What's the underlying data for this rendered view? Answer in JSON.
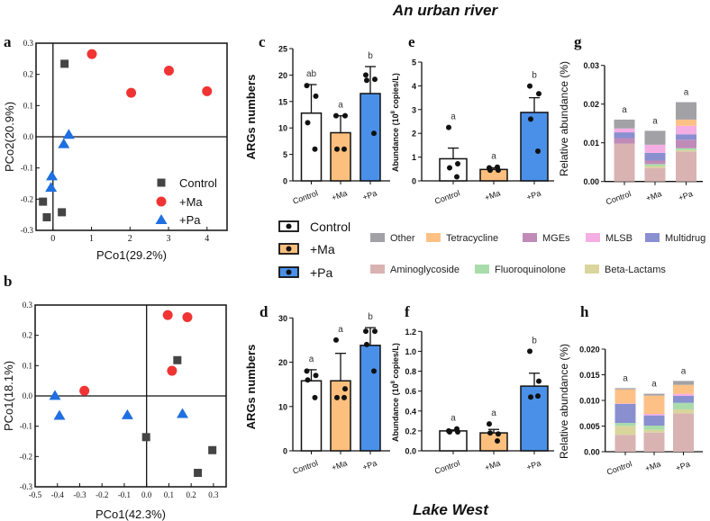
{
  "titles": {
    "top": "An urban river",
    "bottom": "Lake West"
  },
  "colors": {
    "control_marker": "#444444",
    "ma_marker": "#f03434",
    "pa_marker": "#1f6fe0",
    "control_bar": "#ffffff",
    "ma_bar": "#fdbf7e",
    "pa_bar": "#4a90e8",
    "Other": "#a2a2a6",
    "Tetracycline": "#fdc186",
    "MGEs": "#c08bb8",
    "MLSB": "#f4aee4",
    "Multidrug": "#8a8fd0",
    "Aminoglycoside": "#d9b3b2",
    "Fluoroquinolone": "#a9dcaa",
    "Beta-Lactams": "#d9d59c"
  },
  "group_legend": [
    "Control",
    "+Ma",
    "+Pa"
  ],
  "category_legend": [
    "Other",
    "Tetracycline",
    "MGEs",
    "MLSB",
    "Multidrug",
    "Aminoglycoside",
    "Fluoroquinolone",
    "Beta-Lactams"
  ],
  "chart_data": [
    {
      "panel": "a",
      "type": "scatter",
      "xlabel": "PCo1(29.2%)",
      "ylabel": "PCo2(20.9%)",
      "xlim": [
        -0.44,
        4.52
      ],
      "ylim": [
        -0.3,
        0.3
      ],
      "xticks": [
        "0",
        "1",
        "2",
        "3",
        "4"
      ],
      "xtick_values": [
        0,
        1,
        2,
        3,
        4
      ],
      "yticks": [
        "-0.3",
        "-0.2",
        "-0.1",
        "0.0",
        "0.1",
        "0.2",
        "0.3"
      ],
      "ytick_values": [
        -0.3,
        -0.2,
        -0.1,
        0,
        0.1,
        0.2,
        0.3
      ],
      "legend": "bottom-right",
      "series": [
        {
          "name": "Control",
          "points": [
            [
              0.3,
              0.234
            ],
            [
              -0.26,
              -0.208
            ],
            [
              -0.16,
              -0.258
            ],
            [
              0.23,
              -0.242
            ]
          ]
        },
        {
          "name": "+Ma",
          "points": [
            [
              1.01,
              0.265
            ],
            [
              2.03,
              0.141
            ],
            [
              3.01,
              0.212
            ],
            [
              4.0,
              0.146
            ]
          ]
        },
        {
          "name": "+Pa",
          "points": [
            [
              0.41,
              0.008
            ],
            [
              0.28,
              -0.022
            ],
            [
              -0.03,
              -0.125
            ],
            [
              -0.05,
              -0.162
            ]
          ]
        }
      ]
    },
    {
      "panel": "b",
      "type": "scatter",
      "xlabel": "PCo1(42.3%)",
      "ylabel": "PCo1(18.1%)",
      "xlim": [
        -0.5,
        0.357
      ],
      "ylim": [
        -0.3,
        0.3
      ],
      "xticks": [
        "-0.5",
        "-0.4",
        "-0.3",
        "-0.2",
        "-0.1",
        "0.0",
        "0.1",
        "0.2",
        "0.3"
      ],
      "xtick_values": [
        -0.5,
        -0.4,
        -0.3,
        -0.2,
        -0.1,
        0,
        0.1,
        0.2,
        0.3
      ],
      "yticks": [
        "-0.3",
        "-0.2",
        "-0.1",
        "0.0",
        "0.1",
        "0.2",
        "0.3"
      ],
      "ytick_values": [
        -0.3,
        -0.2,
        -0.1,
        0,
        0.1,
        0.2,
        0.3
      ],
      "series": [
        {
          "name": "Control",
          "points": [
            [
              0.138,
              0.118
            ],
            [
              -0.002,
              -0.136
            ],
            [
              0.295,
              -0.179
            ],
            [
              0.23,
              -0.254
            ]
          ]
        },
        {
          "name": "+Ma",
          "points": [
            [
              0.095,
              0.267
            ],
            [
              0.183,
              0.26
            ],
            [
              0.114,
              0.083
            ],
            [
              -0.279,
              0.017
            ]
          ]
        },
        {
          "name": "+Pa",
          "points": [
            [
              -0.411,
              0.002
            ],
            [
              -0.391,
              -0.064
            ],
            [
              -0.086,
              -0.062
            ],
            [
              0.161,
              -0.058
            ]
          ]
        }
      ]
    },
    {
      "panel": "c",
      "type": "bar",
      "ylabel": "ARGs numbers",
      "ylim": [
        0,
        25
      ],
      "yticks": [
        "0",
        "5",
        "10",
        "15",
        "20",
        "25"
      ],
      "ytick_values": [
        0,
        5,
        10,
        15,
        20,
        25
      ],
      "categories": [
        "Control",
        "+Ma",
        "+Pa"
      ],
      "values": [
        12.8,
        9.1,
        16.5
      ],
      "error_upper": [
        18.2,
        12.3,
        21.6
      ],
      "points": [
        [
          18,
          16,
          11,
          6
        ],
        [
          12.3,
          12.3,
          6,
          6
        ],
        [
          20,
          19.2,
          19,
          9
        ]
      ],
      "letters": [
        "ab",
        "a",
        "b"
      ]
    },
    {
      "panel": "e",
      "type": "bar",
      "ylabel_main": "Abundance (10",
      "ylabel_sup": "8",
      "ylabel_end": " copies/L)",
      "ylim": [
        0,
        5
      ],
      "yticks": [
        "0",
        "1",
        "2",
        "3",
        "4",
        "5"
      ],
      "ytick_values": [
        0,
        1,
        2,
        3,
        4,
        5
      ],
      "categories": [
        "Control",
        "+Ma",
        "+Pa"
      ],
      "values": [
        0.93,
        0.48,
        2.88
      ],
      "error_upper": [
        1.38,
        0.55,
        3.5
      ],
      "points": [
        [
          2.25,
          0.72,
          0.55,
          0.17
        ],
        [
          0.55,
          0.45,
          0.45,
          0.58
        ],
        [
          3.99,
          3.67,
          2.6,
          1.25
        ]
      ],
      "letters": [
        "a",
        "a",
        "b"
      ]
    },
    {
      "panel": "g",
      "type": "stacked-bar",
      "ylabel": "Relative abundance (%)",
      "ylim": [
        0,
        0.03
      ],
      "yticks": [
        "0.00",
        "0.01",
        "0.02",
        "0.03"
      ],
      "ytick_values": [
        0,
        0.01,
        0.02,
        0.03
      ],
      "categories": [
        "Control",
        "+Ma",
        "+Pa"
      ],
      "stack_order": [
        "Aminoglycoside",
        "Beta-Lactams",
        "Fluoroquinolone",
        "MGEs",
        "Multidrug",
        "MLSB",
        "Tetracycline",
        "Other"
      ],
      "series": [
        {
          "name": "Aminoglycoside",
          "values": [
            0.0098,
            0.0035,
            0.00775
          ]
        },
        {
          "name": "Beta-Lactams",
          "values": [
            0,
            0.0005,
            0.00035
          ]
        },
        {
          "name": "Fluoroquinolone",
          "values": [
            0,
            0.0005,
            0.0005
          ]
        },
        {
          "name": "MGEs",
          "values": [
            0.0014,
            0.0009,
            0.0022
          ]
        },
        {
          "name": "Multidrug",
          "values": [
            0.0015,
            0.002,
            0.0014
          ]
        },
        {
          "name": "MLSB",
          "values": [
            0.001,
            0.0021,
            0.0022
          ]
        },
        {
          "name": "Tetracycline",
          "values": [
            0,
            0,
            0.0016
          ]
        },
        {
          "name": "Other",
          "values": [
            0.0023,
            0.0036,
            0.0045
          ]
        }
      ],
      "letters": [
        "a",
        "a",
        "a"
      ]
    },
    {
      "panel": "d",
      "type": "bar",
      "ylabel": "ARGs numbers",
      "ylim": [
        0,
        30
      ],
      "yticks": [
        "0",
        "10",
        "20",
        "30"
      ],
      "ytick_values": [
        0,
        10,
        20,
        30
      ],
      "categories": [
        "Control",
        "+Ma",
        "+Pa"
      ],
      "values": [
        15.8,
        15.8,
        23.8
      ],
      "error_upper": [
        18.3,
        22,
        27.8
      ],
      "points": [
        [
          18,
          17,
          16,
          12
        ],
        [
          25,
          14,
          12,
          12
        ],
        [
          27,
          27,
          24,
          18
        ]
      ],
      "letters": [
        "a",
        "a",
        "b"
      ]
    },
    {
      "panel": "f",
      "type": "bar",
      "ylabel_main": "Abundance (10",
      "ylabel_sup": "8",
      "ylabel_end": " copies/L)",
      "ylim": [
        0,
        1.2
      ],
      "yticks": [
        "0.0",
        "0.2",
        "0.4",
        "0.6",
        "0.8",
        "1.0",
        "1.2"
      ],
      "ytick_values": [
        0,
        0.2,
        0.4,
        0.6,
        0.8,
        1.0,
        1.2
      ],
      "categories": [
        "Control",
        "+Ma",
        "+Pa"
      ],
      "values": [
        0.2,
        0.18,
        0.65
      ],
      "error_upper": [
        0.21,
        0.215,
        0.78
      ],
      "points": [
        [
          0.2,
          0.19,
          0.19,
          0.22
        ],
        [
          0.27,
          0.17,
          0.18,
          0.1
        ],
        [
          1.0,
          0.7,
          0.54,
          0.55
        ]
      ],
      "letters": [
        "a",
        "a",
        "b"
      ]
    },
    {
      "panel": "h",
      "type": "stacked-bar",
      "ylabel": "Relative abundance (%)",
      "ylim": [
        0,
        0.02
      ],
      "yticks": [
        "0.00",
        "0.005",
        "0.010",
        "0.015",
        "0.020"
      ],
      "ytick_values": [
        0,
        0.005,
        0.01,
        0.015,
        0.02
      ],
      "categories": [
        "Control",
        "+Ma",
        "+Pa"
      ],
      "stack_order": [
        "Aminoglycoside",
        "Beta-Lactams",
        "Fluoroquinolone",
        "MGEs",
        "Multidrug",
        "MLSB",
        "Tetracycline",
        "Other"
      ],
      "series": [
        {
          "name": "Aminoglycoside",
          "values": [
            0.00327,
            0.00374,
            0.00749
          ]
        },
        {
          "name": "Beta-Lactams",
          "values": [
            0.00176,
            0.00053,
            0.00076
          ]
        },
        {
          "name": "Fluoroquinolone",
          "values": [
            0.00058,
            0.00082,
            0.00128
          ]
        },
        {
          "name": "MGEs",
          "values": [
            0,
            0,
            0
          ]
        },
        {
          "name": "Multidrug",
          "values": [
            0.00369,
            0.00199,
            0.00135
          ]
        },
        {
          "name": "MLSB",
          "values": [
            0.0001,
            0.00029,
            0.00041
          ]
        },
        {
          "name": "Tetracycline",
          "values": [
            0.00276,
            0.00357,
            0.00175
          ]
        },
        {
          "name": "Other",
          "values": [
            0.00024,
            0.00036,
            0.00076
          ]
        }
      ],
      "letters": [
        "a",
        "a",
        "a"
      ]
    }
  ]
}
